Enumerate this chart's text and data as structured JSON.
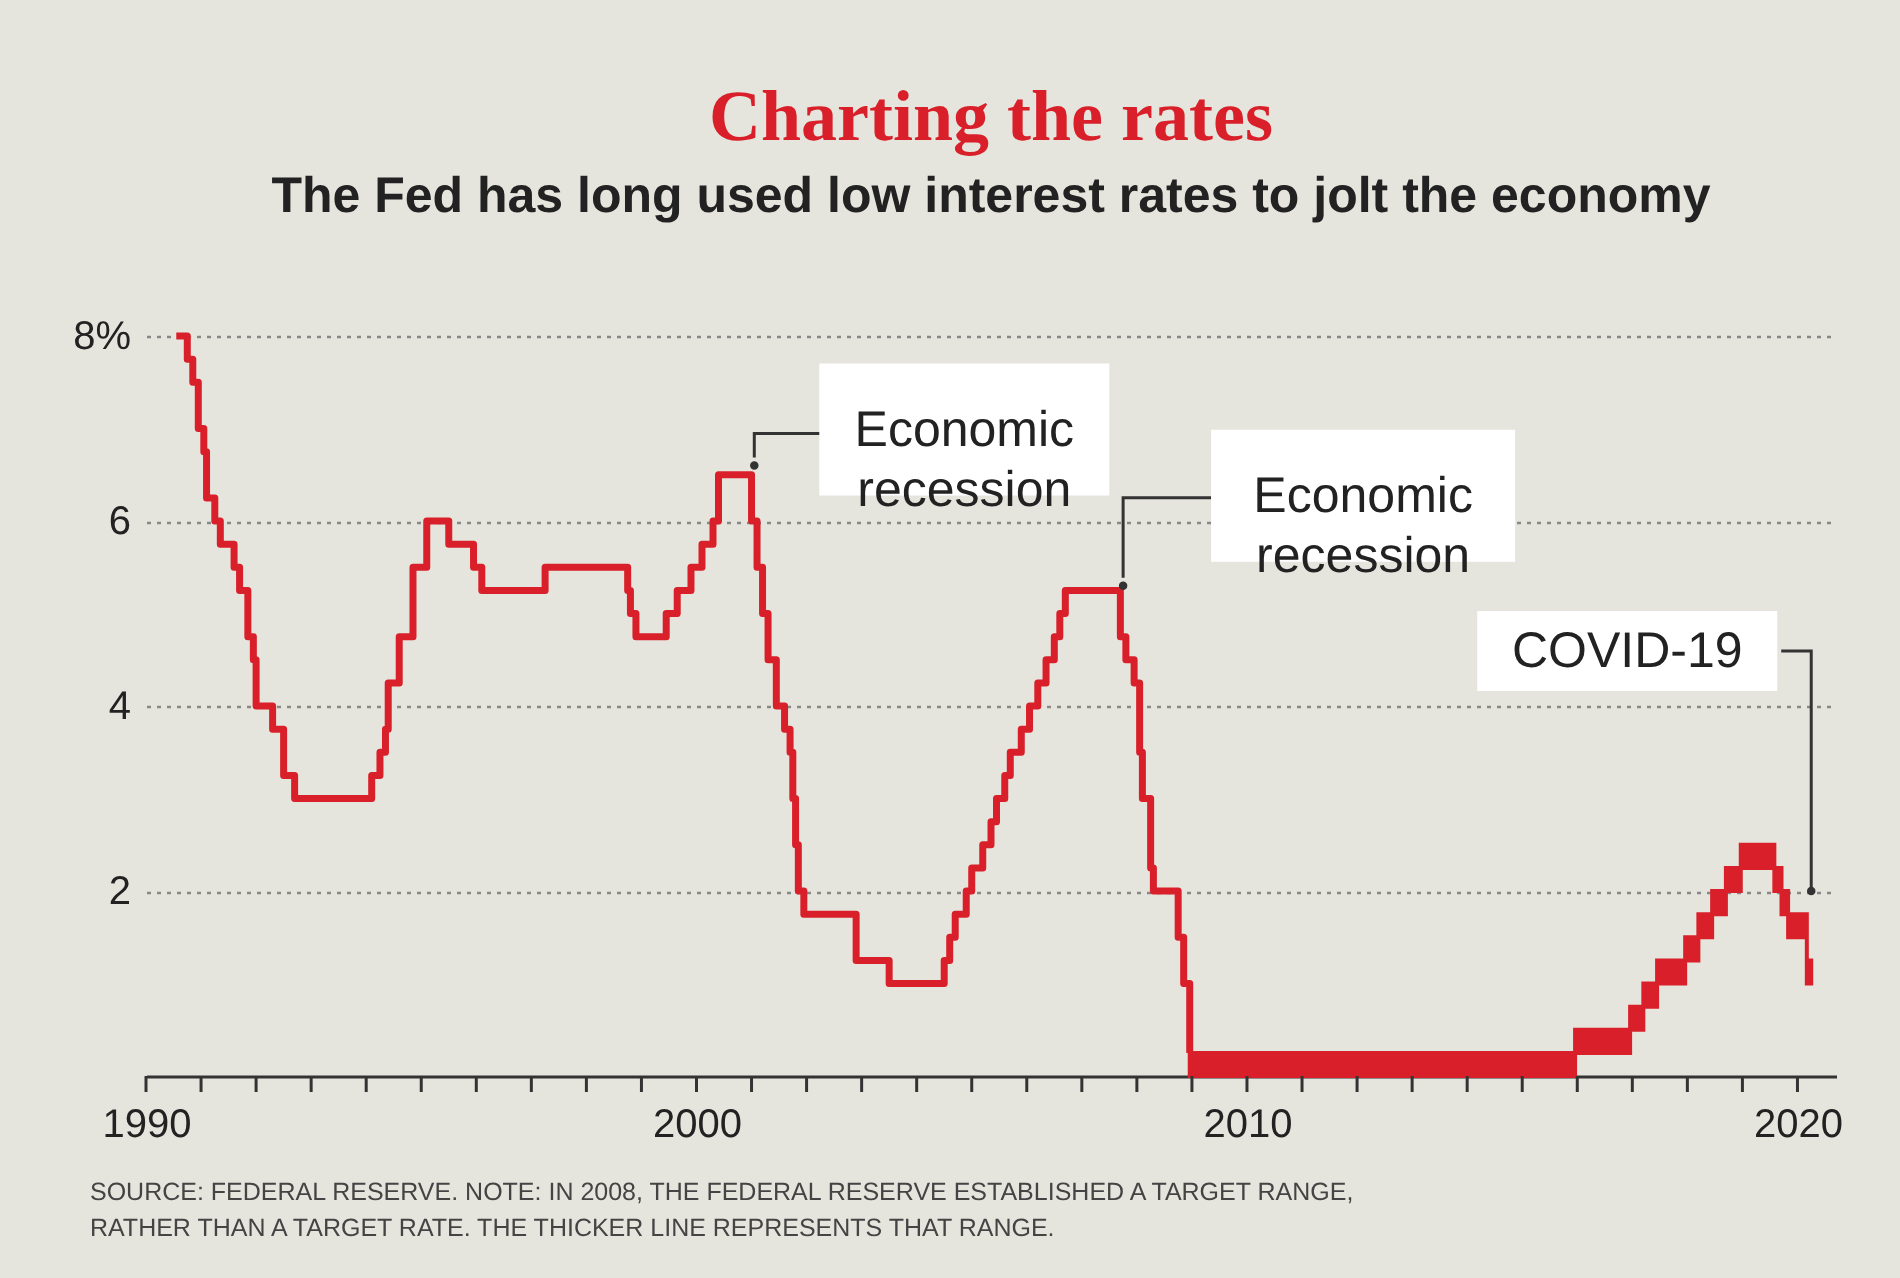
{
  "chart_data": {
    "type": "step",
    "title": "Charting the rates",
    "subtitle": "The Fed has long used low interest rates to jolt the economy",
    "xlim": [
      1990,
      2020.7
    ],
    "xticks": [
      1990,
      {
        "value": 1991,
        "label": null
      },
      {
        "value": 1992,
        "label": null
      },
      {
        "value": 1993,
        "label": null
      },
      {
        "value": 1994,
        "label": null
      },
      {
        "value": 1995,
        "label": null
      },
      {
        "value": 1996,
        "label": null
      },
      {
        "value": 1997,
        "label": null
      },
      {
        "value": 1998,
        "label": null
      },
      {
        "value": 1999,
        "label": null
      },
      2000,
      {
        "value": 2001,
        "label": null
      },
      {
        "value": 2002,
        "label": null
      },
      {
        "value": 2003,
        "label": null
      },
      {
        "value": 2004,
        "label": null
      },
      {
        "value": 2005,
        "label": null
      },
      {
        "value": 2006,
        "label": null
      },
      {
        "value": 2007,
        "label": null
      },
      {
        "value": 2008,
        "label": null
      },
      {
        "value": 2009,
        "label": null
      },
      2010,
      {
        "value": 2011,
        "label": null
      },
      {
        "value": 2012,
        "label": null
      },
      {
        "value": 2013,
        "label": null
      },
      {
        "value": 2014,
        "label": null
      },
      {
        "value": 2015,
        "label": null
      },
      {
        "value": 2016,
        "label": null
      },
      {
        "value": 2017,
        "label": null
      },
      {
        "value": 2018,
        "label": null
      },
      {
        "value": 2019,
        "label": null
      },
      2020
    ],
    "ylim": [
      0,
      8
    ],
    "yticks": [
      {
        "value": 8,
        "label": "8%"
      },
      6,
      4,
      2
    ],
    "grid": "y",
    "line_style": "solid",
    "series": [
      {
        "color": "#d9202a",
        "x": [
          1990.55,
          1990.75,
          1990.85,
          1990.95,
          1991.05,
          1991.1,
          1991.25,
          1991.35,
          1991.6,
          1991.7,
          1991.85,
          1991.95,
          1992.0,
          1992.3,
          1992.5,
          1992.7,
          1994.1,
          1994.25,
          1994.35,
          1994.4,
          1994.6,
          1994.85,
          1995.1,
          1995.5,
          1995.95,
          1996.1,
          1997.25,
          1998.75,
          1998.8,
          1998.9,
          1999.45,
          1999.65,
          1999.9,
          2000.1,
          2000.3,
          2000.4,
          2001.0,
          2001.1,
          2001.2,
          2001.3,
          2001.45,
          2001.6,
          2001.7,
          2001.75,
          2001.8,
          2001.85,
          2001.95,
          2002.9,
          2003.5,
          2004.5,
          2004.6,
          2004.7,
          2004.9,
          2005.0,
          2005.2,
          2005.35,
          2005.45,
          2005.6,
          2005.7,
          2005.9,
          2006.05,
          2006.2,
          2006.35,
          2006.5,
          2006.6,
          2006.7,
          2007.7,
          2007.8,
          2007.95,
          2008.05,
          2008.1,
          2008.25,
          2008.3,
          2008.75,
          2008.85,
          2008.96,
          2015.96,
          2016.96,
          2017.2,
          2017.45,
          2017.96,
          2018.2,
          2018.45,
          2018.7,
          2018.97,
          2019.58,
          2019.71,
          2019.83,
          2020.17,
          2020.25
        ],
        "values": [
          8.0,
          7.75,
          7.5,
          7.0,
          6.75,
          6.25,
          6.0,
          5.75,
          5.5,
          5.25,
          4.75,
          4.5,
          4.0,
          3.75,
          3.25,
          3.0,
          3.25,
          3.5,
          3.75,
          4.25,
          4.75,
          5.5,
          6.0,
          5.75,
          5.5,
          5.25,
          5.5,
          5.25,
          5.0,
          4.75,
          5.0,
          5.25,
          5.5,
          5.75,
          6.0,
          6.5,
          6.0,
          5.5,
          5.0,
          4.5,
          4.0,
          3.75,
          3.5,
          3.0,
          2.5,
          2.0,
          1.75,
          1.25,
          1.0,
          1.25,
          1.5,
          1.75,
          2.0,
          2.25,
          2.5,
          2.75,
          3.0,
          3.25,
          3.5,
          3.75,
          4.0,
          4.25,
          4.5,
          4.75,
          5.0,
          5.25,
          4.75,
          4.5,
          4.25,
          3.5,
          3.0,
          2.25,
          2.0,
          1.5,
          1.0,
          0.25,
          null,
          null,
          null,
          null,
          null,
          null,
          null,
          null,
          null,
          null,
          null,
          null,
          null,
          null
        ],
        "lower": [
          null,
          null,
          null,
          null,
          null,
          null,
          null,
          null,
          null,
          null,
          null,
          null,
          null,
          null,
          null,
          null,
          null,
          null,
          null,
          null,
          null,
          null,
          null,
          null,
          null,
          null,
          null,
          null,
          null,
          null,
          null,
          null,
          null,
          null,
          null,
          null,
          null,
          null,
          null,
          null,
          null,
          null,
          null,
          null,
          null,
          null,
          null,
          null,
          null,
          null,
          null,
          null,
          null,
          null,
          null,
          null,
          null,
          null,
          null,
          null,
          null,
          null,
          null,
          null,
          null,
          null,
          null,
          null,
          null,
          null,
          null,
          null,
          null,
          null,
          null,
          0,
          0.25,
          0.5,
          0.75,
          1.0,
          1.25,
          1.5,
          1.75,
          2.0,
          2.25,
          2.0,
          1.75,
          1.5,
          1.0,
          1.0
        ],
        "upper": [
          null,
          null,
          null,
          null,
          null,
          null,
          null,
          null,
          null,
          null,
          null,
          null,
          null,
          null,
          null,
          null,
          null,
          null,
          null,
          null,
          null,
          null,
          null,
          null,
          null,
          null,
          null,
          null,
          null,
          null,
          null,
          null,
          null,
          null,
          null,
          null,
          null,
          null,
          null,
          null,
          null,
          null,
          null,
          null,
          null,
          null,
          null,
          null,
          null,
          null,
          null,
          null,
          null,
          null,
          null,
          null,
          null,
          null,
          null,
          null,
          null,
          null,
          null,
          null,
          null,
          null,
          null,
          null,
          null,
          null,
          null,
          null,
          null,
          null,
          null,
          0.25,
          0.5,
          0.75,
          1.0,
          1.25,
          1.5,
          1.75,
          2.0,
          2.25,
          2.5,
          2.25,
          2.0,
          1.75,
          1.25,
          1.25
        ]
      }
    ],
    "annotations": [
      {
        "text": "Economic recession",
        "x": 2001.05,
        "y": 6.6
      },
      {
        "text": "Economic recession",
        "x": 2007.75,
        "y": 5.3
      },
      {
        "text": "COVID-19",
        "x": 2020.25,
        "y": 2.0
      },
      "SOURCE: FEDERAL RESERVE. NOTE: IN 2008, THE FEDERAL RESERVE ESTABLISHED A TARGET RANGE, RATHER THAN A TARGET RATE. THE THICKER LINE REPRESENTS THAT RANGE."
    ]
  }
}
